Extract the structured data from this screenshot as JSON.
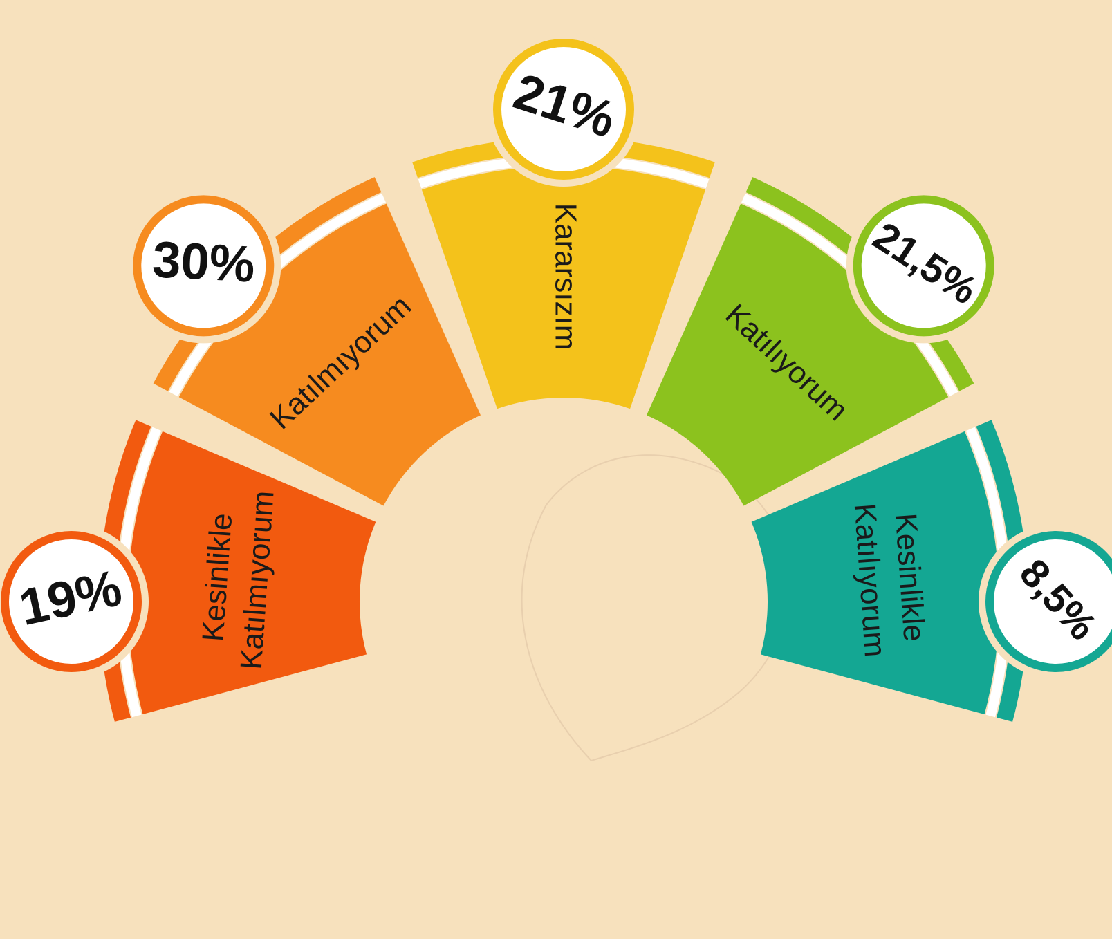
{
  "segments": [
    {
      "label": [
        "Kesinlikle",
        "Katılmıyorum"
      ],
      "percent": "19%"
    },
    {
      "label": [
        "Katılmıyorum"
      ],
      "percent": "30%"
    },
    {
      "label": [
        "Kararsızım"
      ],
      "percent": "21%"
    },
    {
      "label": [
        "Katılıyorum"
      ],
      "percent": "21,5%"
    },
    {
      "label": [
        "Kesinlikle",
        "Katılıyorum"
      ],
      "percent": "8,5%"
    }
  ]
}
